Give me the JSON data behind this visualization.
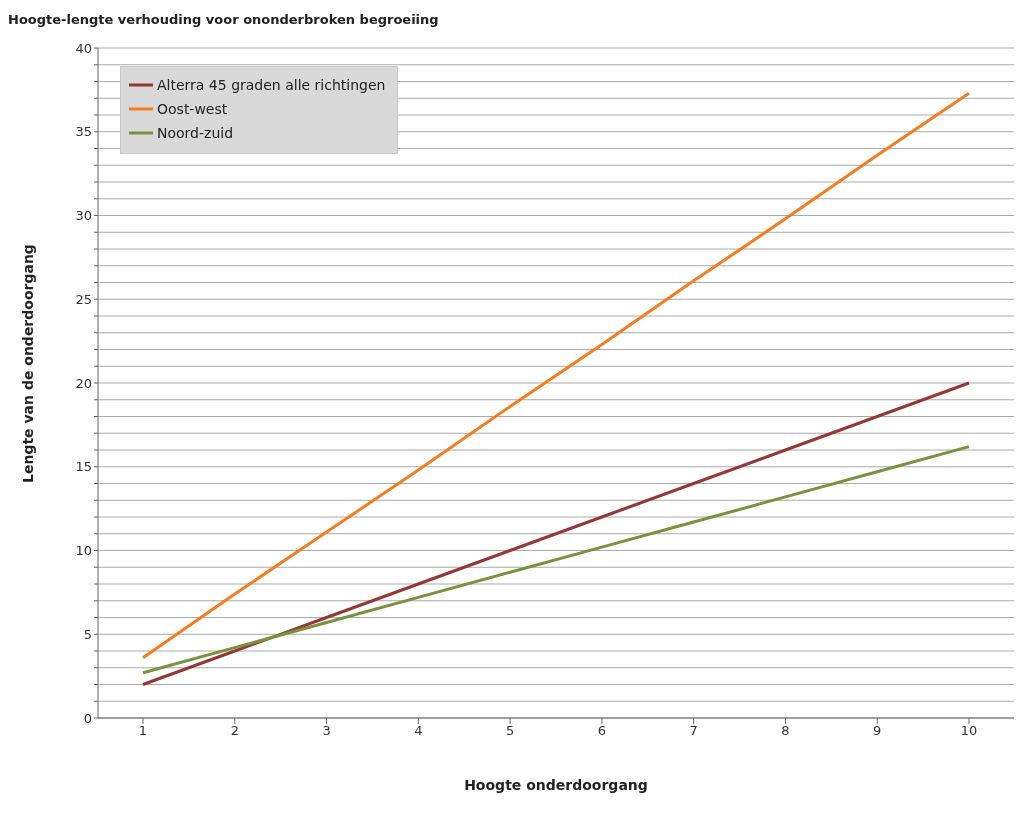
{
  "chart_data": {
    "type": "line",
    "title": "Hoogte-lengte verhouding voor ononderbroken begroeiing",
    "xlabel": "Hoogte onderdoorgang",
    "ylabel": "Lengte van de onderdoorgang",
    "categories": [
      "1",
      "2",
      "3",
      "4",
      "5",
      "6",
      "7",
      "8",
      "9",
      "10"
    ],
    "series": [
      {
        "name": "Alterra 45 graden alle richtingen",
        "color": "#953735",
        "values": [
          2,
          4,
          6,
          8,
          10,
          12,
          14,
          16,
          18,
          20
        ]
      },
      {
        "name": "Oost-west",
        "color": "#f57c1f",
        "values": [
          3.6,
          7.4,
          11.1,
          14.8,
          18.6,
          22.3,
          26.1,
          29.8,
          33.6,
          37.3
        ]
      },
      {
        "name": "Noord-zuid",
        "color": "#77933c",
        "values": [
          2.7,
          4.2,
          5.7,
          7.2,
          8.7,
          10.2,
          11.7,
          13.2,
          14.7,
          16.2
        ]
      }
    ],
    "ylim": [
      0,
      40
    ],
    "yticks": [
      0,
      {
        "value": 1,
        "label": null
      },
      {
        "value": 2,
        "label": null
      },
      {
        "value": 3,
        "label": null
      },
      {
        "value": 4,
        "label": null
      },
      5,
      {
        "value": 6,
        "label": null
      },
      {
        "value": 7,
        "label": null
      },
      {
        "value": 8,
        "label": null
      },
      {
        "value": 9,
        "label": null
      },
      10,
      {
        "value": 11,
        "label": null
      },
      {
        "value": 12,
        "label": null
      },
      {
        "value": 13,
        "label": null
      },
      {
        "value": 14,
        "label": null
      },
      15,
      {
        "value": 16,
        "label": null
      },
      {
        "value": 17,
        "label": null
      },
      {
        "value": 18,
        "label": null
      },
      {
        "value": 19,
        "label": null
      },
      20,
      {
        "value": 21,
        "label": null
      },
      {
        "value": 22,
        "label": null
      },
      {
        "value": 23,
        "label": null
      },
      {
        "value": 24,
        "label": null
      },
      25,
      {
        "value": 26,
        "label": null
      },
      {
        "value": 27,
        "label": null
      },
      {
        "value": 28,
        "label": null
      },
      {
        "value": 29,
        "label": null
      },
      30,
      {
        "value": 31,
        "label": null
      },
      {
        "value": 32,
        "label": null
      },
      {
        "value": 33,
        "label": null
      },
      {
        "value": 34,
        "label": null
      },
      35,
      {
        "value": 36,
        "label": null
      },
      {
        "value": 37,
        "label": null
      },
      {
        "value": 38,
        "label": null
      },
      {
        "value": 39,
        "label": null
      },
      40
    ],
    "grid": "y",
    "legend": "top left",
    "marker": "none",
    "line_style": "solid"
  }
}
